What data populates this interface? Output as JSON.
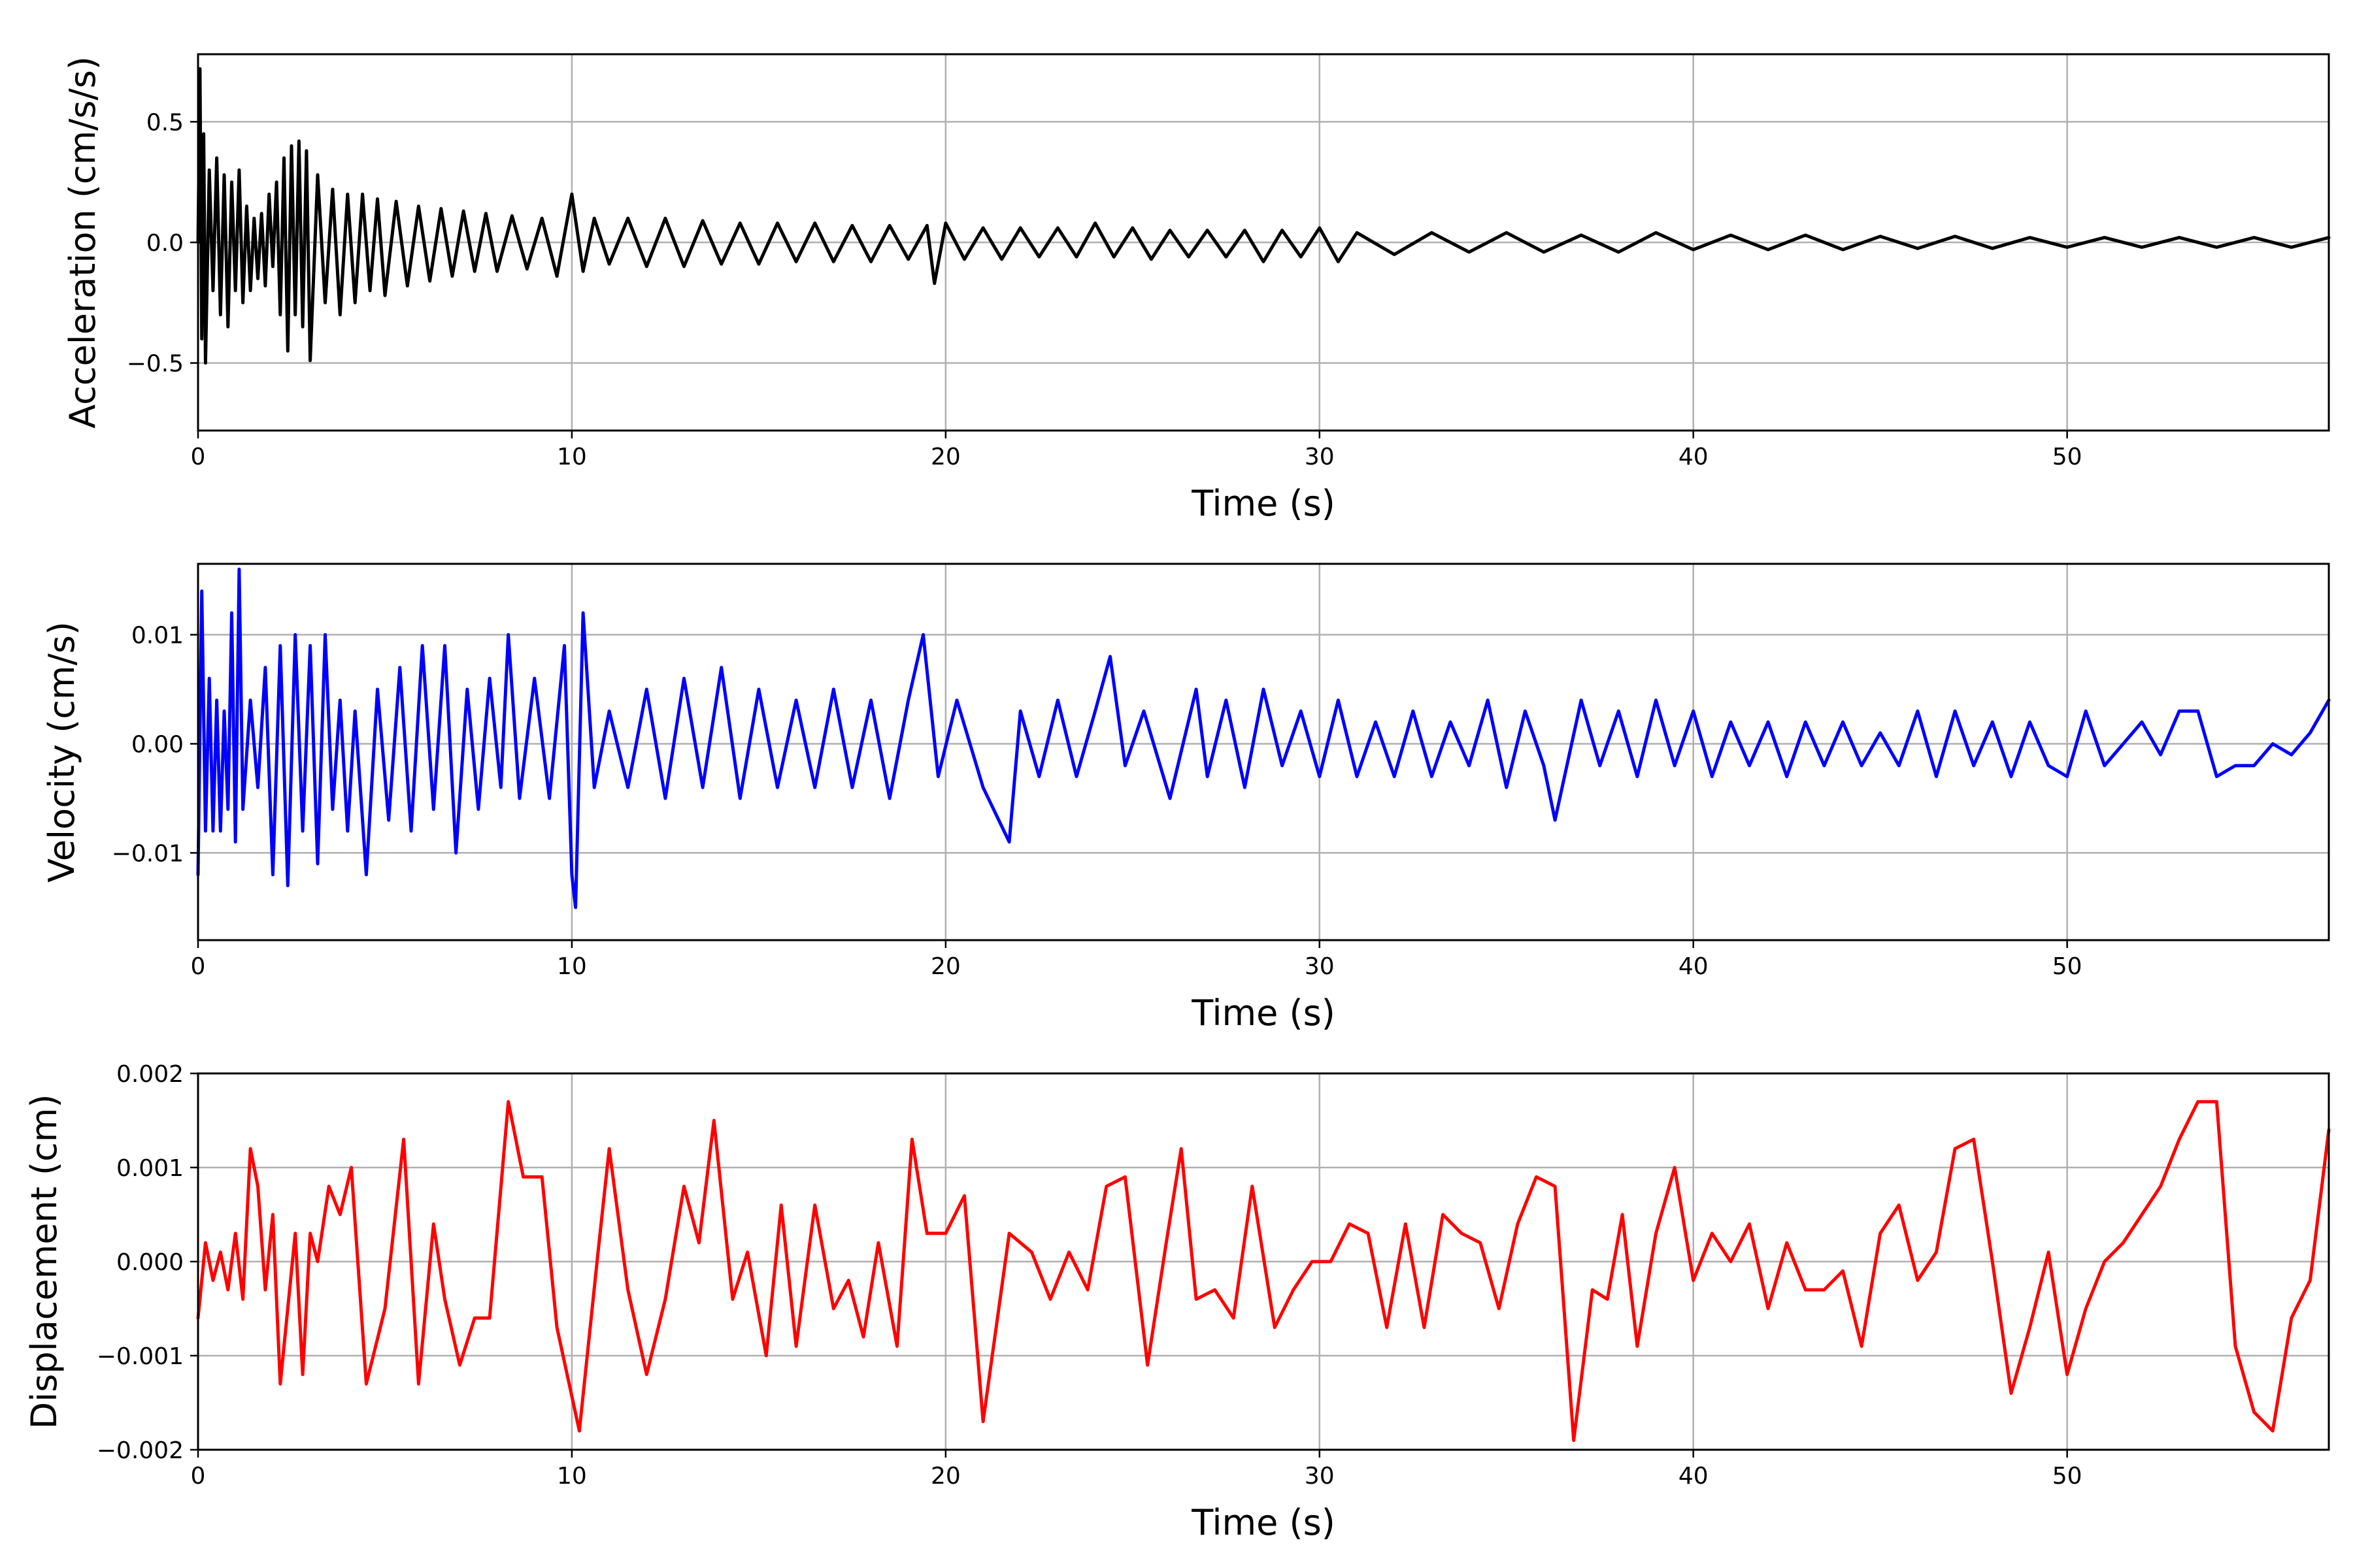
{
  "figure": {
    "background": "#ffffff",
    "grid_color": "#b0b0b0"
  },
  "chart_data": [
    {
      "type": "line",
      "title": "",
      "xlabel": "Time (s)",
      "ylabel": "Acceleration (cm/s/s)",
      "xlim": [
        0,
        57
      ],
      "ylim": [
        -0.78,
        0.78
      ],
      "xticks": [
        0,
        10,
        20,
        30,
        40,
        50
      ],
      "xtick_labels": [
        "0",
        "10",
        "20",
        "30",
        "40",
        "50"
      ],
      "yticks": [
        -0.5,
        0.0,
        0.5
      ],
      "ytick_labels": [
        "−0.5",
        "0.0",
        "0.5"
      ],
      "grid": true,
      "color": "#000000",
      "series": [
        {
          "x": [
            0,
            0.05,
            0.1,
            0.15,
            0.2,
            0.3,
            0.4,
            0.5,
            0.6,
            0.7,
            0.8,
            0.9,
            1.0,
            1.1,
            1.2,
            1.3,
            1.4,
            1.5,
            1.6,
            1.7,
            1.8,
            1.9,
            2.0,
            2.1,
            2.2,
            2.3,
            2.4,
            2.5,
            2.6,
            2.7,
            2.8,
            2.9,
            3.0,
            3.2,
            3.4,
            3.6,
            3.8,
            4.0,
            4.2,
            4.4,
            4.6,
            4.8,
            5.0,
            5.3,
            5.6,
            5.9,
            6.2,
            6.5,
            6.8,
            7.1,
            7.4,
            7.7,
            8.0,
            8.4,
            8.8,
            9.2,
            9.6,
            10.0,
            10.3,
            10.6,
            11.0,
            11.5,
            12.0,
            12.5,
            13.0,
            13.5,
            14.0,
            14.5,
            15.0,
            15.5,
            16.0,
            16.5,
            17.0,
            17.5,
            18.0,
            18.5,
            19.0,
            19.5,
            19.7,
            20.0,
            20.5,
            21.0,
            21.5,
            22.0,
            22.5,
            23.0,
            23.5,
            24.0,
            24.5,
            25.0,
            25.5,
            26.0,
            26.5,
            27.0,
            27.5,
            28.0,
            28.5,
            29.0,
            29.5,
            30.0,
            30.5,
            31.0,
            32.0,
            33.0,
            34.0,
            35.0,
            36.0,
            37.0,
            38.0,
            39.0,
            40.0,
            41.0,
            42.0,
            43.0,
            44.0,
            45.0,
            46.0,
            47.0,
            48.0,
            49.0,
            50.0,
            51.0,
            52.0,
            53.0,
            54.0,
            55.0,
            56.0,
            57.0
          ],
          "y": [
            0.0,
            0.72,
            -0.4,
            0.45,
            -0.5,
            0.3,
            -0.2,
            0.35,
            -0.3,
            0.28,
            -0.35,
            0.25,
            -0.2,
            0.3,
            -0.25,
            0.15,
            -0.2,
            0.1,
            -0.15,
            0.12,
            -0.18,
            0.2,
            -0.1,
            0.25,
            -0.3,
            0.35,
            -0.45,
            0.4,
            -0.3,
            0.42,
            -0.35,
            0.38,
            -0.49,
            0.28,
            -0.25,
            0.22,
            -0.3,
            0.2,
            -0.25,
            0.2,
            -0.2,
            0.18,
            -0.22,
            0.17,
            -0.18,
            0.15,
            -0.16,
            0.14,
            -0.14,
            0.13,
            -0.12,
            0.12,
            -0.12,
            0.11,
            -0.11,
            0.1,
            -0.14,
            0.2,
            -0.12,
            0.1,
            -0.09,
            0.1,
            -0.1,
            0.1,
            -0.1,
            0.09,
            -0.09,
            0.08,
            -0.09,
            0.08,
            -0.08,
            0.08,
            -0.08,
            0.07,
            -0.08,
            0.07,
            -0.07,
            0.07,
            -0.17,
            0.08,
            -0.07,
            0.06,
            -0.07,
            0.06,
            -0.06,
            0.06,
            -0.06,
            0.08,
            -0.06,
            0.06,
            -0.07,
            0.05,
            -0.06,
            0.05,
            -0.06,
            0.05,
            -0.08,
            0.05,
            -0.06,
            0.06,
            -0.08,
            0.04,
            -0.05,
            0.04,
            -0.04,
            0.04,
            -0.04,
            0.03,
            -0.04,
            0.04,
            -0.03,
            0.03,
            -0.03,
            0.03,
            -0.03,
            0.025,
            -0.025,
            0.025,
            -0.025,
            0.02,
            -0.02,
            0.02,
            -0.02,
            0.02,
            -0.02,
            0.02,
            -0.02,
            0.02
          ]
        }
      ]
    },
    {
      "type": "line",
      "title": "",
      "xlabel": "Time (s)",
      "ylabel": "Velocity (cm/s)",
      "xlim": [
        0,
        57
      ],
      "ylim": [
        -0.018,
        0.0165
      ],
      "xticks": [
        0,
        10,
        20,
        30,
        40,
        50
      ],
      "xtick_labels": [
        "0",
        "10",
        "20",
        "30",
        "40",
        "50"
      ],
      "yticks": [
        -0.01,
        0.0,
        0.01
      ],
      "ytick_labels": [
        "−0.01",
        "0.00",
        "0.01"
      ],
      "grid": true,
      "color": "#0000ff",
      "series": [
        {
          "x": [
            0,
            0.1,
            0.2,
            0.3,
            0.4,
            0.5,
            0.6,
            0.7,
            0.8,
            0.9,
            1.0,
            1.1,
            1.2,
            1.4,
            1.6,
            1.8,
            2.0,
            2.2,
            2.4,
            2.6,
            2.8,
            3.0,
            3.2,
            3.4,
            3.6,
            3.8,
            4.0,
            4.2,
            4.5,
            4.8,
            5.1,
            5.4,
            5.7,
            6.0,
            6.3,
            6.6,
            6.9,
            7.2,
            7.5,
            7.8,
            8.1,
            8.3,
            8.6,
            9.0,
            9.4,
            9.8,
            10.0,
            10.1,
            10.3,
            10.6,
            11.0,
            11.5,
            12.0,
            12.5,
            13.0,
            13.5,
            14.0,
            14.5,
            15.0,
            15.5,
            16.0,
            16.5,
            17.0,
            17.5,
            18.0,
            18.5,
            19.0,
            19.4,
            19.8,
            20.3,
            21.0,
            21.7,
            22.0,
            22.5,
            23.0,
            23.5,
            24.0,
            24.4,
            24.8,
            25.3,
            26.0,
            26.7,
            27.0,
            27.5,
            28.0,
            28.5,
            29.0,
            29.5,
            30.0,
            30.5,
            31.0,
            31.5,
            32.0,
            32.5,
            33.0,
            33.5,
            34.0,
            34.5,
            35.0,
            35.5,
            36.0,
            36.3,
            37.0,
            37.5,
            38.0,
            38.5,
            39.0,
            39.5,
            40.0,
            40.5,
            41.0,
            41.5,
            42.0,
            42.5,
            43.0,
            43.5,
            44.0,
            44.5,
            45.0,
            45.5,
            46.0,
            46.5,
            47.0,
            47.5,
            48.0,
            48.5,
            49.0,
            49.5,
            50.0,
            50.5,
            51.0,
            51.5,
            52.0,
            52.5,
            53.0,
            53.5,
            54.0,
            54.5,
            55.0,
            55.5,
            56.0,
            56.5,
            57.0
          ],
          "y": [
            -0.012,
            0.014,
            -0.008,
            0.006,
            -0.008,
            0.004,
            -0.008,
            0.003,
            -0.006,
            0.012,
            -0.009,
            0.016,
            -0.006,
            0.004,
            -0.004,
            0.007,
            -0.012,
            0.009,
            -0.013,
            0.01,
            -0.008,
            0.009,
            -0.011,
            0.01,
            -0.006,
            0.004,
            -0.008,
            0.003,
            -0.012,
            0.005,
            -0.007,
            0.007,
            -0.008,
            0.009,
            -0.006,
            0.009,
            -0.01,
            0.005,
            -0.006,
            0.006,
            -0.004,
            0.01,
            -0.005,
            0.006,
            -0.005,
            0.009,
            -0.012,
            -0.015,
            0.012,
            -0.004,
            0.003,
            -0.004,
            0.005,
            -0.005,
            0.006,
            -0.004,
            0.007,
            -0.005,
            0.005,
            -0.004,
            0.004,
            -0.004,
            0.005,
            -0.004,
            0.004,
            -0.005,
            0.004,
            0.01,
            -0.003,
            0.004,
            -0.004,
            -0.009,
            0.003,
            -0.003,
            0.004,
            -0.003,
            0.003,
            0.008,
            -0.002,
            0.003,
            -0.005,
            0.005,
            -0.003,
            0.004,
            -0.004,
            0.005,
            -0.002,
            0.003,
            -0.003,
            0.004,
            -0.003,
            0.002,
            -0.003,
            0.003,
            -0.003,
            0.002,
            -0.002,
            0.004,
            -0.004,
            0.003,
            -0.002,
            -0.007,
            0.004,
            -0.002,
            0.003,
            -0.003,
            0.004,
            -0.002,
            0.003,
            -0.003,
            0.002,
            -0.002,
            0.002,
            -0.003,
            0.002,
            -0.002,
            0.002,
            -0.002,
            0.001,
            -0.002,
            0.003,
            -0.003,
            0.003,
            -0.002,
            0.002,
            -0.003,
            0.002,
            -0.002,
            -0.003,
            0.003,
            -0.002,
            0.0,
            0.002,
            -0.001,
            0.003,
            0.003,
            -0.003,
            -0.002,
            -0.002,
            0.0,
            -0.001,
            0.001,
            0.004
          ]
        }
      ]
    },
    {
      "type": "line",
      "title": "",
      "xlabel": "Time (s)",
      "ylabel": "Displacement (cm)",
      "xlim": [
        0,
        57
      ],
      "ylim": [
        -0.002,
        0.002
      ],
      "xticks": [
        0,
        10,
        20,
        30,
        40,
        50
      ],
      "xtick_labels": [
        "0",
        "10",
        "20",
        "30",
        "40",
        "50"
      ],
      "yticks": [
        -0.002,
        -0.001,
        0.0,
        0.001,
        0.002
      ],
      "ytick_labels": [
        "−0.002",
        "−0.001",
        "0.000",
        "0.001",
        "0.002"
      ],
      "grid": true,
      "color": "#ff0000",
      "series": [
        {
          "x": [
            0,
            0.2,
            0.4,
            0.6,
            0.8,
            1.0,
            1.2,
            1.4,
            1.6,
            1.8,
            2.0,
            2.2,
            2.6,
            2.8,
            3.0,
            3.2,
            3.5,
            3.8,
            4.1,
            4.5,
            5.0,
            5.5,
            5.9,
            6.3,
            6.6,
            7.0,
            7.4,
            7.8,
            8.3,
            8.7,
            9.2,
            9.6,
            10.2,
            10.7,
            11.0,
            11.5,
            12.0,
            12.5,
            13.0,
            13.4,
            13.8,
            14.3,
            14.7,
            15.2,
            15.6,
            16.0,
            16.5,
            17.0,
            17.4,
            17.8,
            18.2,
            18.7,
            19.1,
            19.5,
            20.0,
            20.5,
            21.0,
            21.7,
            22.3,
            22.8,
            23.3,
            23.8,
            24.3,
            24.8,
            25.4,
            25.9,
            26.3,
            26.7,
            27.2,
            27.7,
            28.2,
            28.8,
            29.3,
            29.8,
            30.3,
            30.8,
            31.3,
            31.8,
            32.3,
            32.8,
            33.3,
            33.8,
            34.3,
            34.8,
            35.3,
            35.8,
            36.3,
            36.8,
            37.3,
            37.7,
            38.1,
            38.5,
            39.0,
            39.5,
            40.0,
            40.5,
            41.0,
            41.5,
            42.0,
            42.5,
            43.0,
            43.5,
            44.0,
            44.5,
            45.0,
            45.5,
            46.0,
            46.5,
            47.0,
            47.5,
            48.0,
            48.5,
            49.0,
            49.5,
            50.0,
            50.5,
            51.0,
            51.5,
            52.0,
            52.5,
            53.0,
            53.5,
            54.0,
            54.5,
            55.0,
            55.5,
            56.0,
            56.5,
            57.0
          ],
          "y": [
            -0.0006,
            0.0002,
            -0.0002,
            0.0001,
            -0.0003,
            0.0003,
            -0.0004,
            0.0012,
            0.0008,
            -0.0003,
            0.0005,
            -0.0013,
            0.0003,
            -0.0012,
            0.0003,
            0.0,
            0.0008,
            0.0005,
            0.001,
            -0.0013,
            -0.0005,
            0.0013,
            -0.0013,
            0.0004,
            -0.0004,
            -0.0011,
            -0.0006,
            -0.0006,
            0.0017,
            0.0009,
            0.0009,
            -0.0007,
            -0.0018,
            0.0001,
            0.0012,
            -0.0003,
            -0.0012,
            -0.0004,
            0.0008,
            0.0002,
            0.0015,
            -0.0004,
            0.0001,
            -0.001,
            0.0006,
            -0.0009,
            0.0006,
            -0.0005,
            -0.0002,
            -0.0008,
            0.0002,
            -0.0009,
            0.0013,
            0.0003,
            0.0003,
            0.0007,
            -0.0017,
            0.0003,
            0.0001,
            -0.0004,
            0.0001,
            -0.0003,
            0.0008,
            0.0009,
            -0.0011,
            0.0002,
            0.0012,
            -0.0004,
            -0.0003,
            -0.0006,
            0.0008,
            -0.0007,
            -0.0003,
            0.0,
            0.0,
            0.0004,
            0.0003,
            -0.0007,
            0.0004,
            -0.0007,
            0.0005,
            0.0003,
            0.0002,
            -0.0005,
            0.0004,
            0.0009,
            0.0008,
            -0.0019,
            -0.0003,
            -0.0004,
            0.0005,
            -0.0009,
            0.0003,
            0.001,
            -0.0002,
            0.0003,
            0.0,
            0.0004,
            -0.0005,
            0.0002,
            -0.0003,
            -0.0003,
            -0.0001,
            -0.0009,
            0.0003,
            0.0006,
            -0.0002,
            0.0001,
            0.0012,
            0.0013,
            0.0,
            -0.0014,
            -0.0007,
            0.0001,
            -0.0012,
            -0.0005,
            0.0,
            0.0002,
            0.0005,
            0.0008,
            0.0013,
            0.0017,
            0.0017,
            -0.0009,
            -0.0016,
            -0.0018,
            -0.0006,
            -0.0002,
            0.0014
          ]
        }
      ]
    }
  ]
}
